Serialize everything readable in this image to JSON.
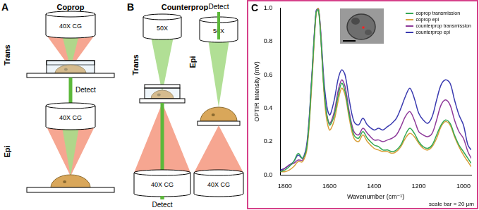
{
  "panels": [
    {
      "label": "A",
      "title": "Coprop",
      "trans": {
        "label": "Trans",
        "objective": "40X CG",
        "detect": "Detect"
      },
      "epi": {
        "label": "Epi",
        "objective": "40X CG"
      }
    },
    {
      "label": "B",
      "title": "Counterprop",
      "trans": {
        "label": "Trans",
        "top_objective": "50X",
        "bottom_objective": "40X CG",
        "detect": "Detect"
      },
      "epi": {
        "label": "Epi",
        "top_objective": "50X",
        "bottom_objective": "40X CG",
        "detect": "Detect"
      }
    },
    {
      "label": "C"
    }
  ],
  "chart_data": {
    "type": "line",
    "xlabel": "Wavenumber (cm⁻¹)",
    "ylabel": "OPTIR Intensity (mV)",
    "annotation": "scale bar = 20 µm",
    "x": [
      1820,
      1800,
      1780,
      1760,
      1740,
      1720,
      1700,
      1680,
      1660,
      1650,
      1640,
      1620,
      1600,
      1580,
      1560,
      1545,
      1530,
      1510,
      1490,
      1470,
      1450,
      1430,
      1400,
      1380,
      1360,
      1340,
      1320,
      1300,
      1280,
      1260,
      1240,
      1220,
      1200,
      1180,
      1160,
      1140,
      1120,
      1100,
      1080,
      1060,
      1040,
      1020,
      1000,
      980,
      965
    ],
    "series": [
      {
        "name": "coprop transmission",
        "color": "#35a853",
        "values": [
          0.02,
          0.03,
          0.05,
          0.08,
          0.13,
          0.1,
          0.18,
          0.55,
          0.97,
          0.99,
          0.85,
          0.45,
          0.3,
          0.35,
          0.48,
          0.55,
          0.5,
          0.35,
          0.24,
          0.22,
          0.26,
          0.22,
          0.18,
          0.17,
          0.15,
          0.15,
          0.14,
          0.15,
          0.18,
          0.24,
          0.28,
          0.25,
          0.2,
          0.17,
          0.16,
          0.18,
          0.24,
          0.3,
          0.33,
          0.31,
          0.24,
          0.18,
          0.14,
          0.1,
          0.07
        ]
      },
      {
        "name": "coprop epi",
        "color": "#d9a03a",
        "values": [
          0.02,
          0.02,
          0.03,
          0.05,
          0.08,
          0.08,
          0.16,
          0.52,
          0.96,
          1.0,
          0.86,
          0.42,
          0.27,
          0.32,
          0.45,
          0.52,
          0.48,
          0.33,
          0.22,
          0.2,
          0.24,
          0.2,
          0.16,
          0.15,
          0.14,
          0.14,
          0.13,
          0.14,
          0.17,
          0.22,
          0.25,
          0.23,
          0.19,
          0.16,
          0.15,
          0.17,
          0.22,
          0.29,
          0.32,
          0.3,
          0.23,
          0.17,
          0.12,
          0.08,
          0.05
        ]
      },
      {
        "name": "counterprop transmission",
        "color": "#8e3a9a",
        "values": [
          0.02,
          0.04,
          0.06,
          0.07,
          0.09,
          0.09,
          0.18,
          0.55,
          0.97,
          1.0,
          0.86,
          0.45,
          0.31,
          0.37,
          0.51,
          0.57,
          0.53,
          0.37,
          0.26,
          0.24,
          0.28,
          0.25,
          0.21,
          0.21,
          0.2,
          0.21,
          0.22,
          0.24,
          0.29,
          0.35,
          0.38,
          0.33,
          0.26,
          0.24,
          0.23,
          0.25,
          0.33,
          0.42,
          0.45,
          0.42,
          0.33,
          0.26,
          0.22,
          0.14,
          0.1
        ]
      },
      {
        "name": "counterprop epi",
        "color": "#3a3ab0",
        "values": [
          0.03,
          0.04,
          0.06,
          0.08,
          0.12,
          0.1,
          0.2,
          0.57,
          0.98,
          1.0,
          0.88,
          0.5,
          0.36,
          0.44,
          0.58,
          0.63,
          0.6,
          0.44,
          0.32,
          0.3,
          0.34,
          0.3,
          0.27,
          0.28,
          0.27,
          0.29,
          0.31,
          0.34,
          0.4,
          0.47,
          0.52,
          0.46,
          0.37,
          0.33,
          0.31,
          0.35,
          0.45,
          0.54,
          0.57,
          0.55,
          0.45,
          0.36,
          0.3,
          0.18,
          0.15
        ]
      }
    ],
    "xlim": [
      1820,
      965
    ],
    "xticks": [
      1800,
      1600,
      1400,
      1200,
      1000
    ],
    "ylim": [
      0,
      1
    ],
    "yticks": [
      {
        "value": 0,
        "label": "0.0"
      },
      0.2,
      0.4,
      0.6,
      0.8,
      {
        "value": 1,
        "label": "1.0"
      }
    ],
    "grid": false,
    "legend": "upper right"
  }
}
